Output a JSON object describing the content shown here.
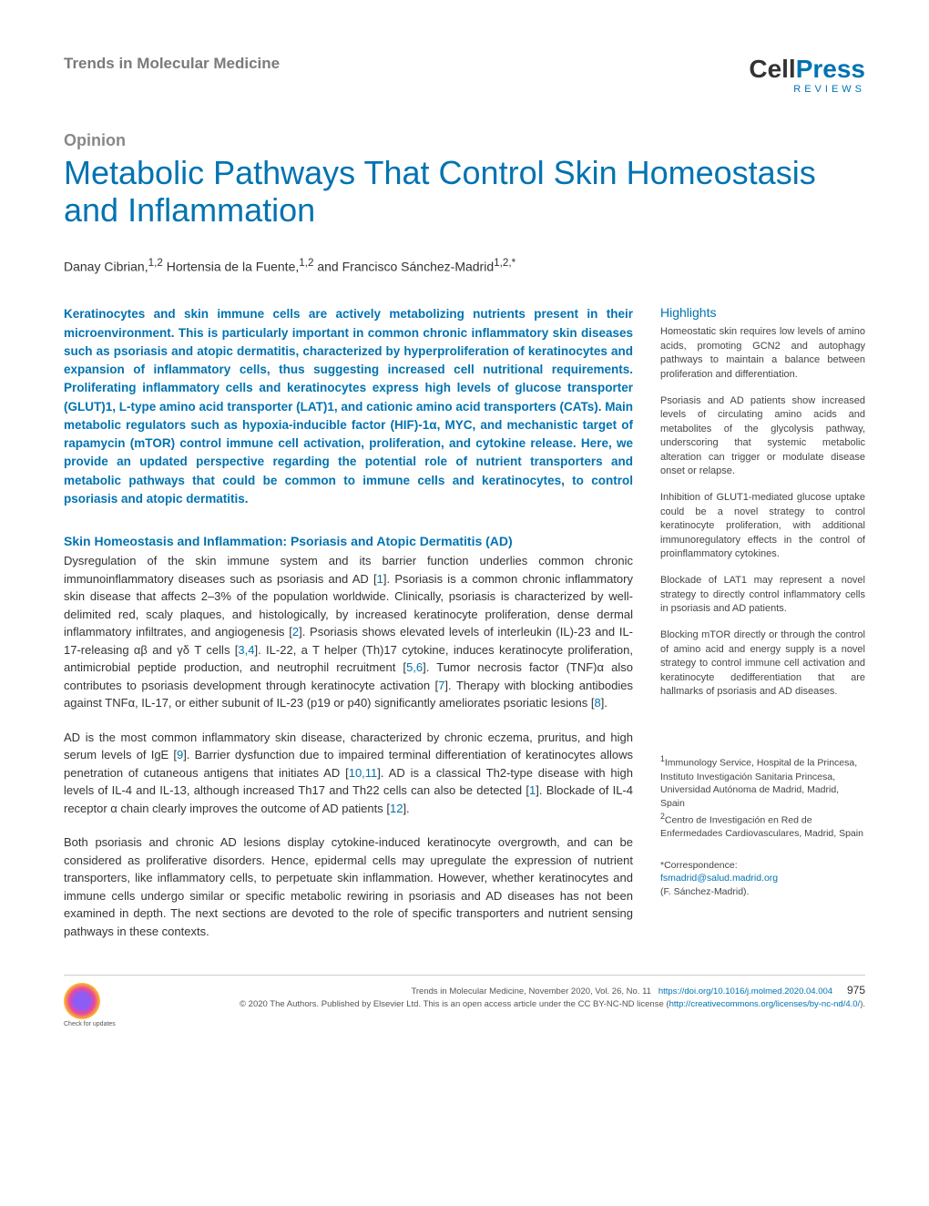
{
  "header": {
    "journal": "Trends in Molecular Medicine",
    "logo_main": "Cell",
    "logo_suffix": "Press",
    "logo_sub": "REVIEWS"
  },
  "article": {
    "type_label": "Opinion",
    "title": "Metabolic Pathways That Control Skin Homeostasis and Inflammation",
    "authors_html": "Danay Cibrian,<sup>1,2</sup> Hortensia de la Fuente,<sup>1,2</sup> and Francisco Sánchez-Madrid<sup>1,2,*</sup>"
  },
  "abstract": "Keratinocytes and skin immune cells are actively metabolizing nutrients present in their microenvironment. This is particularly important in common chronic inflammatory skin diseases such as psoriasis and atopic dermatitis, characterized by hyperproliferation of keratinocytes and expansion of inflammatory cells, thus suggesting increased cell nutritional requirements. Proliferating inflammatory cells and keratinocytes express high levels of glucose transporter (GLUT)1, L-type amino acid transporter (LAT)1, and cationic amino acid transporters (CATs). Main metabolic regulators such as hypoxia-inducible factor (HIF)-1α, MYC, and mechanistic target of rapamycin (mTOR) control immune cell activation, proliferation, and cytokine release. Here, we provide an updated perspective regarding the potential role of nutrient transporters and metabolic pathways that could be common to immune cells and keratinocytes, to control psoriasis and atopic dermatitis.",
  "section1_heading": "Skin Homeostasis and Inflammation: Psoriasis and Atopic Dermatitis (AD)",
  "para1": "Dysregulation of the skin immune system and its barrier function underlies common chronic immunoinflammatory diseases such as psoriasis and AD [1]. Psoriasis is a common chronic inflammatory skin disease that affects 2–3% of the population worldwide. Clinically, psoriasis is characterized by well-delimited red, scaly plaques, and histologically, by increased keratinocyte proliferation, dense dermal inflammatory infiltrates, and angiogenesis [2]. Psoriasis shows elevated levels of interleukin (IL)-23 and IL-17-releasing αβ and γδ T cells [3,4]. IL-22, a T helper (Th)17 cytokine, induces keratinocyte proliferation, antimicrobial peptide production, and neutrophil recruitment [5,6]. Tumor necrosis factor (TNF)α also contributes to psoriasis development through keratinocyte activation [7]. Therapy with blocking antibodies against TNFα, IL-17, or either subunit of IL-23 (p19 or p40) significantly ameliorates psoriatic lesions [8].",
  "para2": "AD is the most common inflammatory skin disease, characterized by chronic eczema, pruritus, and high serum levels of IgE [9]. Barrier dysfunction due to impaired terminal differentiation of keratinocytes allows penetration of cutaneous antigens that initiates AD [10,11]. AD is a classical Th2-type disease with high levels of IL-4 and IL-13, although increased Th17 and Th22 cells can also be detected [1]. Blockade of IL-4 receptor α chain clearly improves the outcome of AD patients [12].",
  "para3": "Both psoriasis and chronic AD lesions display cytokine-induced keratinocyte overgrowth, and can be considered as proliferative disorders. Hence, epidermal cells may upregulate the expression of nutrient transporters, like inflammatory cells, to perpetuate skin inflammation. However, whether keratinocytes and immune cells undergo similar or specific metabolic rewiring in psoriasis and AD diseases has not been examined in depth. The next sections are devoted to the role of specific transporters and nutrient sensing pathways in these contexts.",
  "highlights": {
    "heading": "Highlights",
    "items": [
      "Homeostatic skin requires low levels of amino acids, promoting GCN2 and autophagy pathways to maintain a balance between proliferation and differentiation.",
      "Psoriasis and AD patients show increased levels of circulating amino acids and metabolites of the glycolysis pathway, underscoring that systemic metabolic alteration can trigger or modulate disease onset or relapse.",
      "Inhibition of GLUT1-mediated glucose uptake could be a novel strategy to control keratinocyte proliferation, with additional immunoregulatory effects in the control of proinflammatory cytokines.",
      "Blockade of LAT1 may represent a novel strategy to directly control inflammatory cells in psoriasis and AD patients.",
      "Blocking mTOR directly or through the control of amino acid and energy supply is a novel strategy to control immune cell activation and keratinocyte dedifferentiation that are hallmarks of psoriasis and AD diseases."
    ]
  },
  "affiliations": {
    "aff1": "Immunology Service, Hospital de la Princesa, Instituto Investigación Sanitaria Princesa, Universidad Autónoma de Madrid, Madrid, Spain",
    "aff2": "Centro de Investigación en Red de Enfermedades Cardiovasculares, Madrid, Spain"
  },
  "correspondence": {
    "label": "*Correspondence:",
    "email": "fsmadrid@salud.madrid.org",
    "name": "(F. Sánchez-Madrid)."
  },
  "footer": {
    "check_updates": "Check for updates",
    "citation": "Trends in Molecular Medicine, November 2020, Vol. 26, No. 11",
    "doi": "https://doi.org/10.1016/j.molmed.2020.04.004",
    "page_num": "975",
    "copyright": "© 2020 The Authors. Published by Elsevier Ltd. This is an open access article under the CC BY-NC-ND license (",
    "license_url": "http://creativecommons.org/licenses/by-nc-nd/4.0/",
    "copyright_end": ")."
  },
  "colors": {
    "primary": "#0073b1",
    "text": "#333333",
    "muted": "#7a7a7a"
  }
}
